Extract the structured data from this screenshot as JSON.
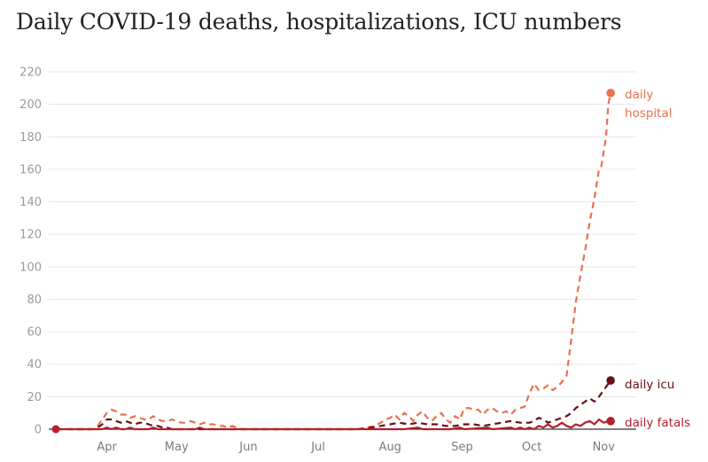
{
  "chart_data": {
    "type": "line",
    "title": "Daily COVID-19 deaths, hospitalizations, ICU numbers",
    "xlabel": "",
    "ylabel": "",
    "ylim": [
      0,
      220
    ],
    "yticks": [
      0,
      20,
      40,
      60,
      80,
      100,
      120,
      140,
      160,
      180,
      200,
      220
    ],
    "x_ticks": [
      {
        "label": "Apr",
        "day": 22
      },
      {
        "label": "May",
        "day": 52
      },
      {
        "label": "Jun",
        "day": 83
      },
      {
        "label": "Jul",
        "day": 113
      },
      {
        "label": "Aug",
        "day": 144
      },
      {
        "label": "Sep",
        "day": 175
      },
      {
        "label": "Oct",
        "day": 205
      },
      {
        "label": "Nov",
        "day": 236
      }
    ],
    "grid": true,
    "colors": {
      "hospital": "#e8714f",
      "icu": "#6b0f12",
      "fatals": "#b3202a",
      "grid": "#e6e6e6",
      "axis": "#333333"
    },
    "series": [
      {
        "name": "daily hospital",
        "label_lines": [
          "daily",
          "hospital"
        ],
        "key": "hospital",
        "style": "dashed",
        "points": [
          [
            0,
            0
          ],
          [
            16,
            0
          ],
          [
            18,
            2
          ],
          [
            20,
            6
          ],
          [
            22,
            10
          ],
          [
            24,
            12
          ],
          [
            26,
            11
          ],
          [
            28,
            9
          ],
          [
            30,
            9
          ],
          [
            32,
            7
          ],
          [
            34,
            8
          ],
          [
            36,
            7
          ],
          [
            38,
            6
          ],
          [
            40,
            6
          ],
          [
            42,
            8
          ],
          [
            44,
            6
          ],
          [
            46,
            5
          ],
          [
            48,
            5
          ],
          [
            50,
            6
          ],
          [
            52,
            5
          ],
          [
            54,
            4
          ],
          [
            56,
            4
          ],
          [
            58,
            5
          ],
          [
            60,
            4
          ],
          [
            62,
            3
          ],
          [
            64,
            4
          ],
          [
            66,
            3
          ],
          [
            68,
            3
          ],
          [
            70,
            2
          ],
          [
            72,
            2
          ],
          [
            74,
            1
          ],
          [
            76,
            2
          ],
          [
            78,
            1
          ],
          [
            80,
            0
          ],
          [
            130,
            0
          ],
          [
            134,
            1
          ],
          [
            137,
            2
          ],
          [
            140,
            4
          ],
          [
            142,
            6
          ],
          [
            144,
            7
          ],
          [
            146,
            9
          ],
          [
            148,
            6
          ],
          [
            150,
            10
          ],
          [
            152,
            8
          ],
          [
            154,
            5
          ],
          [
            156,
            9
          ],
          [
            158,
            11
          ],
          [
            160,
            7
          ],
          [
            162,
            5
          ],
          [
            164,
            8
          ],
          [
            166,
            10
          ],
          [
            168,
            6
          ],
          [
            170,
            4
          ],
          [
            172,
            8
          ],
          [
            174,
            6
          ],
          [
            176,
            13
          ],
          [
            178,
            13
          ],
          [
            180,
            12
          ],
          [
            182,
            12
          ],
          [
            184,
            9
          ],
          [
            186,
            12
          ],
          [
            188,
            13
          ],
          [
            190,
            11
          ],
          [
            192,
            10
          ],
          [
            194,
            11
          ],
          [
            196,
            9
          ],
          [
            198,
            12
          ],
          [
            200,
            13
          ],
          [
            202,
            14
          ],
          [
            204,
            22
          ],
          [
            206,
            28
          ],
          [
            208,
            24
          ],
          [
            210,
            25
          ],
          [
            212,
            27
          ],
          [
            214,
            24
          ],
          [
            216,
            26
          ],
          [
            218,
            29
          ],
          [
            220,
            33
          ],
          [
            222,
            55
          ],
          [
            224,
            78
          ],
          [
            226,
            95
          ],
          [
            228,
            110
          ],
          [
            230,
            128
          ],
          [
            232,
            142
          ],
          [
            234,
            160
          ],
          [
            235,
            162
          ],
          [
            237,
            180
          ],
          [
            238,
            200
          ],
          [
            239,
            207
          ]
        ]
      },
      {
        "name": "daily icu",
        "key": "icu",
        "style": "dashed",
        "points": [
          [
            0,
            0
          ],
          [
            16,
            0
          ],
          [
            18,
            1
          ],
          [
            20,
            3
          ],
          [
            22,
            6
          ],
          [
            24,
            6
          ],
          [
            26,
            5
          ],
          [
            28,
            4
          ],
          [
            30,
            5
          ],
          [
            32,
            4
          ],
          [
            34,
            3
          ],
          [
            36,
            4
          ],
          [
            38,
            4
          ],
          [
            40,
            3
          ],
          [
            42,
            2
          ],
          [
            44,
            2
          ],
          [
            46,
            1
          ],
          [
            48,
            1
          ],
          [
            50,
            0
          ],
          [
            130,
            0
          ],
          [
            136,
            1
          ],
          [
            140,
            2
          ],
          [
            144,
            3
          ],
          [
            148,
            4
          ],
          [
            152,
            3
          ],
          [
            156,
            4
          ],
          [
            160,
            3
          ],
          [
            164,
            3
          ],
          [
            168,
            2
          ],
          [
            172,
            2
          ],
          [
            176,
            3
          ],
          [
            180,
            3
          ],
          [
            184,
            2
          ],
          [
            188,
            3
          ],
          [
            192,
            4
          ],
          [
            196,
            5
          ],
          [
            200,
            4
          ],
          [
            204,
            4
          ],
          [
            206,
            5
          ],
          [
            208,
            7
          ],
          [
            210,
            6
          ],
          [
            212,
            4
          ],
          [
            214,
            5
          ],
          [
            216,
            6
          ],
          [
            218,
            7
          ],
          [
            220,
            8
          ],
          [
            222,
            10
          ],
          [
            224,
            13
          ],
          [
            226,
            15
          ],
          [
            228,
            17
          ],
          [
            230,
            19
          ],
          [
            232,
            17
          ],
          [
            234,
            20
          ],
          [
            236,
            24
          ],
          [
            238,
            28
          ],
          [
            239,
            30
          ]
        ]
      },
      {
        "name": "daily fatals",
        "key": "fatals",
        "style": "solid",
        "points": [
          [
            0,
            0
          ],
          [
            20,
            0
          ],
          [
            22,
            1
          ],
          [
            24,
            0
          ],
          [
            26,
            1
          ],
          [
            28,
            0
          ],
          [
            30,
            0
          ],
          [
            32,
            1
          ],
          [
            34,
            0
          ],
          [
            40,
            0
          ],
          [
            42,
            1
          ],
          [
            44,
            0
          ],
          [
            60,
            0
          ],
          [
            62,
            1
          ],
          [
            64,
            0
          ],
          [
            150,
            0
          ],
          [
            156,
            1
          ],
          [
            158,
            0
          ],
          [
            170,
            0
          ],
          [
            174,
            1
          ],
          [
            176,
            0
          ],
          [
            186,
            1
          ],
          [
            188,
            0
          ],
          [
            196,
            1
          ],
          [
            198,
            0
          ],
          [
            200,
            1
          ],
          [
            202,
            0
          ],
          [
            204,
            1
          ],
          [
            206,
            0
          ],
          [
            208,
            2
          ],
          [
            210,
            1
          ],
          [
            212,
            3
          ],
          [
            214,
            1
          ],
          [
            216,
            2
          ],
          [
            218,
            4
          ],
          [
            220,
            2
          ],
          [
            222,
            1
          ],
          [
            224,
            3
          ],
          [
            226,
            2
          ],
          [
            228,
            4
          ],
          [
            230,
            5
          ],
          [
            232,
            3
          ],
          [
            234,
            6
          ],
          [
            236,
            4
          ],
          [
            238,
            5
          ],
          [
            239,
            5
          ]
        ]
      }
    ]
  }
}
